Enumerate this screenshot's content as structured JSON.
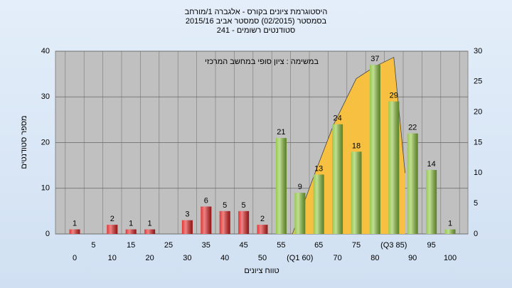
{
  "chart_data": {
    "type": "bar",
    "title": [
      "היסטוגרמת ציונים בקורס - אלגברה 1/מורחב",
      "בסמסטר  (02/2015)  סמסטר אביב 2015/16",
      "סטודנטים רשומים - 241"
    ],
    "annotation": "במשימה : ציון סופי במחשב המרכזי",
    "ylabel": "מספר סטודנטים",
    "xlabel": "טווח ציונים",
    "categories": [
      "0",
      "5",
      "10",
      "15",
      "20",
      "25",
      "30",
      "35",
      "40",
      "45",
      "50",
      "55",
      "(Q1 60)",
      "65",
      "70",
      "75",
      "80",
      "(Q3 85)",
      "90",
      "95",
      "100"
    ],
    "values": [
      1,
      null,
      2,
      1,
      1,
      null,
      3,
      6,
      5,
      5,
      2,
      21,
      9,
      13,
      24,
      18,
      37,
      29,
      22,
      14,
      1
    ],
    "colors": [
      "#e02020",
      "#e02020",
      "#e02020",
      "#e02020",
      "#e02020",
      "#e02020",
      "#e02020",
      "#e02020",
      "#e02020",
      "#e02020",
      "#e02020",
      "#8cc43c",
      "#8cc43c",
      "#8cc43c",
      "#8cc43c",
      "#8cc43c",
      "#8cc43c",
      "#8cc43c",
      "#8cc43c",
      "#8cc43c",
      "#8cc43c"
    ],
    "ylim": [
      0,
      40
    ],
    "yticks": [
      0,
      10,
      20,
      30,
      40
    ],
    "y2lim": [
      0,
      30
    ],
    "y2ticks": [
      0,
      5,
      10,
      15,
      20,
      25,
      30
    ],
    "area": {
      "axis": "y2",
      "color": "#f7c040",
      "x": [
        58,
        64,
        69,
        75,
        80,
        85,
        88
      ],
      "values": [
        0,
        10,
        18,
        25.5,
        27.5,
        29,
        10
      ]
    },
    "grid": true
  }
}
